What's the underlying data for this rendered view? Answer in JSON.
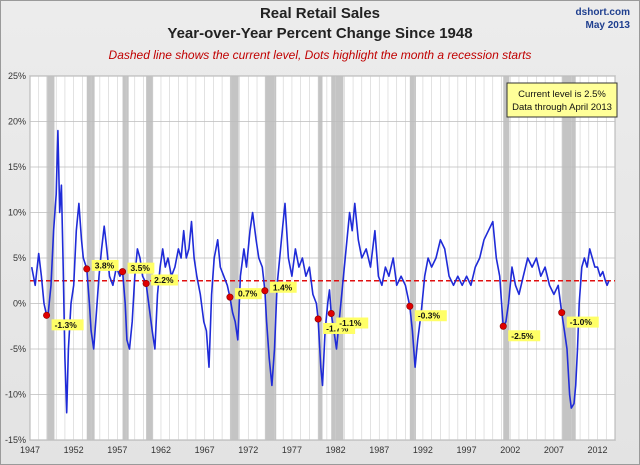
{
  "header": {
    "title_line1": "Real Retail Sales",
    "title_line2": "Year-over-Year Percent Change Since 1948",
    "subtitle": "Dashed line shows the current level, Dots highlight the month a recession starts",
    "source": "dshort.com",
    "date": "May 2013"
  },
  "infobox": {
    "line1": "Current level is 2.5%",
    "line2": "Data through April 2013"
  },
  "colors": {
    "series": "#1f2bd8",
    "current_level": "#e01010",
    "recession_dot": "#e00000",
    "recession_band": "#c4c4c4",
    "label_bg": "#ffff66"
  },
  "chart_data": {
    "type": "line",
    "title": "Real Retail Sales Year-over-Year Percent Change Since 1948",
    "xlim": [
      1947,
      2014
    ],
    "ylim": [
      -15,
      25
    ],
    "x_ticks": [
      "1947",
      "1952",
      "1957",
      "1962",
      "1967",
      "1972",
      "1977",
      "1982",
      "1987",
      "1992",
      "1997",
      "2002",
      "2007",
      "2012"
    ],
    "y_ticks": [
      "-15%",
      "-10%",
      "-5%",
      "0%",
      "5%",
      "10%",
      "15%",
      "20%",
      "25%"
    ],
    "grid": true,
    "current_level": 2.5,
    "recessions": [
      [
        1948.9,
        1949.8
      ],
      [
        1953.5,
        1954.4
      ],
      [
        1957.6,
        1958.3
      ],
      [
        1960.3,
        1961.1
      ],
      [
        1969.9,
        1970.9
      ],
      [
        1973.9,
        1975.2
      ],
      [
        1980.0,
        1980.5
      ],
      [
        1981.5,
        1982.9
      ],
      [
        1990.5,
        1991.2
      ],
      [
        2001.2,
        2001.9
      ],
      [
        2007.9,
        2009.5
      ]
    ],
    "recession_points": [
      {
        "x": 1948.9,
        "y": -1.3,
        "label": "-1.3%"
      },
      {
        "x": 1953.5,
        "y": 3.8,
        "label": "3.8%"
      },
      {
        "x": 1957.6,
        "y": 3.5,
        "label": "3.5%"
      },
      {
        "x": 1960.3,
        "y": 2.2,
        "label": "2.2%"
      },
      {
        "x": 1969.9,
        "y": 0.7,
        "label": "0.7%"
      },
      {
        "x": 1973.9,
        "y": 1.4,
        "label": "1.4%"
      },
      {
        "x": 1980.0,
        "y": -1.7,
        "label": "-1.7%"
      },
      {
        "x": 1981.5,
        "y": -1.1,
        "label": "-1.1%"
      },
      {
        "x": 1990.5,
        "y": -0.3,
        "label": "-0.3%"
      },
      {
        "x": 2001.2,
        "y": -2.5,
        "label": "-2.5%"
      },
      {
        "x": 2007.9,
        "y": -1.0,
        "label": "-1.0%"
      }
    ],
    "series": [
      {
        "values": [
          [
            1947.2,
            4
          ],
          [
            1947.6,
            2
          ],
          [
            1948.0,
            5.5
          ],
          [
            1948.3,
            3
          ],
          [
            1948.6,
            0
          ],
          [
            1948.9,
            -1.3
          ],
          [
            1949.1,
            -1
          ],
          [
            1949.4,
            2
          ],
          [
            1949.7,
            8
          ],
          [
            1950.0,
            12
          ],
          [
            1950.2,
            19
          ],
          [
            1950.4,
            10
          ],
          [
            1950.6,
            13
          ],
          [
            1950.8,
            4
          ],
          [
            1951.0,
            -6
          ],
          [
            1951.2,
            -12
          ],
          [
            1951.4,
            -5
          ],
          [
            1951.7,
            0
          ],
          [
            1952.0,
            2
          ],
          [
            1952.3,
            8
          ],
          [
            1952.6,
            11
          ],
          [
            1952.9,
            7
          ],
          [
            1953.1,
            5
          ],
          [
            1953.5,
            3.8
          ],
          [
            1953.8,
            0
          ],
          [
            1954.0,
            -3
          ],
          [
            1954.3,
            -5
          ],
          [
            1954.6,
            -1
          ],
          [
            1954.9,
            3
          ],
          [
            1955.2,
            6
          ],
          [
            1955.5,
            8.5
          ],
          [
            1955.8,
            6
          ],
          [
            1956.1,
            3
          ],
          [
            1956.5,
            2
          ],
          [
            1956.9,
            4
          ],
          [
            1957.3,
            3
          ],
          [
            1957.6,
            3.5
          ],
          [
            1957.9,
            0
          ],
          [
            1958.1,
            -4
          ],
          [
            1958.4,
            -5
          ],
          [
            1958.7,
            -2
          ],
          [
            1959.0,
            3
          ],
          [
            1959.3,
            6
          ],
          [
            1959.6,
            5
          ],
          [
            1959.9,
            3
          ],
          [
            1960.3,
            2.2
          ],
          [
            1960.6,
            0
          ],
          [
            1961.0,
            -3
          ],
          [
            1961.3,
            -5
          ],
          [
            1961.6,
            1
          ],
          [
            1961.9,
            4
          ],
          [
            1962.2,
            6
          ],
          [
            1962.5,
            4
          ],
          [
            1962.8,
            5
          ],
          [
            1963.2,
            3
          ],
          [
            1963.6,
            4
          ],
          [
            1964.0,
            6
          ],
          [
            1964.3,
            5
          ],
          [
            1964.6,
            8
          ],
          [
            1964.9,
            5
          ],
          [
            1965.2,
            6
          ],
          [
            1965.5,
            9
          ],
          [
            1965.8,
            5
          ],
          [
            1966.1,
            3
          ],
          [
            1966.5,
            1
          ],
          [
            1966.9,
            -2
          ],
          [
            1967.2,
            -3
          ],
          [
            1967.5,
            -7
          ],
          [
            1967.8,
            1
          ],
          [
            1968.1,
            5
          ],
          [
            1968.5,
            7
          ],
          [
            1968.8,
            4
          ],
          [
            1969.2,
            3
          ],
          [
            1969.6,
            2
          ],
          [
            1969.9,
            0.7
          ],
          [
            1970.2,
            -1
          ],
          [
            1970.5,
            -2
          ],
          [
            1970.8,
            -4
          ],
          [
            1971.1,
            3
          ],
          [
            1971.5,
            6
          ],
          [
            1971.8,
            4
          ],
          [
            1972.2,
            8
          ],
          [
            1972.5,
            10
          ],
          [
            1972.9,
            7
          ],
          [
            1973.2,
            5
          ],
          [
            1973.6,
            4
          ],
          [
            1973.9,
            1.4
          ],
          [
            1974.1,
            -2
          ],
          [
            1974.4,
            -6
          ],
          [
            1974.7,
            -9
          ],
          [
            1975.0,
            -5
          ],
          [
            1975.3,
            2
          ],
          [
            1975.6,
            5
          ],
          [
            1975.9,
            8
          ],
          [
            1976.2,
            11
          ],
          [
            1976.6,
            5
          ],
          [
            1977.0,
            3
          ],
          [
            1977.4,
            6
          ],
          [
            1977.8,
            4
          ],
          [
            1978.2,
            5
          ],
          [
            1978.6,
            3
          ],
          [
            1979.0,
            4
          ],
          [
            1979.4,
            1
          ],
          [
            1979.8,
            0
          ],
          [
            1980.0,
            -1.7
          ],
          [
            1980.3,
            -7
          ],
          [
            1980.5,
            -9
          ],
          [
            1980.8,
            -3
          ],
          [
            1981.1,
            0
          ],
          [
            1981.3,
            1.5
          ],
          [
            1981.5,
            -1.1
          ],
          [
            1981.8,
            -3
          ],
          [
            1982.1,
            -5
          ],
          [
            1982.4,
            -2
          ],
          [
            1982.8,
            2
          ],
          [
            1983.2,
            6
          ],
          [
            1983.6,
            10
          ],
          [
            1983.9,
            8
          ],
          [
            1984.2,
            11
          ],
          [
            1984.6,
            7
          ],
          [
            1985.0,
            5
          ],
          [
            1985.5,
            6
          ],
          [
            1986.0,
            4
          ],
          [
            1986.5,
            8
          ],
          [
            1986.9,
            3
          ],
          [
            1987.3,
            2
          ],
          [
            1987.7,
            4
          ],
          [
            1988.1,
            3
          ],
          [
            1988.6,
            5
          ],
          [
            1989.0,
            2
          ],
          [
            1989.5,
            3
          ],
          [
            1990.0,
            2
          ],
          [
            1990.5,
            -0.3
          ],
          [
            1990.8,
            -3
          ],
          [
            1991.1,
            -7
          ],
          [
            1991.4,
            -4
          ],
          [
            1991.8,
            -1
          ],
          [
            1992.2,
            3
          ],
          [
            1992.6,
            5
          ],
          [
            1993.0,
            4
          ],
          [
            1993.5,
            5
          ],
          [
            1994.0,
            7
          ],
          [
            1994.5,
            6
          ],
          [
            1995.0,
            3
          ],
          [
            1995.5,
            2
          ],
          [
            1996.0,
            3
          ],
          [
            1996.5,
            2
          ],
          [
            1997.0,
            3
          ],
          [
            1997.5,
            2
          ],
          [
            1998.0,
            4
          ],
          [
            1998.5,
            5
          ],
          [
            1999.0,
            7
          ],
          [
            1999.5,
            8
          ],
          [
            2000.0,
            9
          ],
          [
            2000.4,
            5
          ],
          [
            2000.8,
            3
          ],
          [
            2001.2,
            -2.5
          ],
          [
            2001.5,
            -2
          ],
          [
            2001.8,
            0
          ],
          [
            2002.2,
            4
          ],
          [
            2002.6,
            2
          ],
          [
            2003.0,
            1
          ],
          [
            2003.5,
            3
          ],
          [
            2004.0,
            5
          ],
          [
            2004.5,
            4
          ],
          [
            2005.0,
            5
          ],
          [
            2005.5,
            3
          ],
          [
            2006.0,
            4
          ],
          [
            2006.5,
            2
          ],
          [
            2007.0,
            1
          ],
          [
            2007.5,
            2
          ],
          [
            2007.9,
            -1.0
          ],
          [
            2008.2,
            -3
          ],
          [
            2008.5,
            -5
          ],
          [
            2008.8,
            -10
          ],
          [
            2009.0,
            -11.5
          ],
          [
            2009.3,
            -11
          ],
          [
            2009.5,
            -9
          ],
          [
            2009.7,
            -5
          ],
          [
            2009.9,
            0
          ],
          [
            2010.2,
            4
          ],
          [
            2010.5,
            5
          ],
          [
            2010.8,
            4
          ],
          [
            2011.1,
            6
          ],
          [
            2011.4,
            5
          ],
          [
            2011.7,
            4
          ],
          [
            2012.0,
            4
          ],
          [
            2012.3,
            3
          ],
          [
            2012.6,
            3.5
          ],
          [
            2012.9,
            2.5
          ],
          [
            2013.1,
            2
          ],
          [
            2013.3,
            2.5
          ]
        ]
      }
    ]
  }
}
